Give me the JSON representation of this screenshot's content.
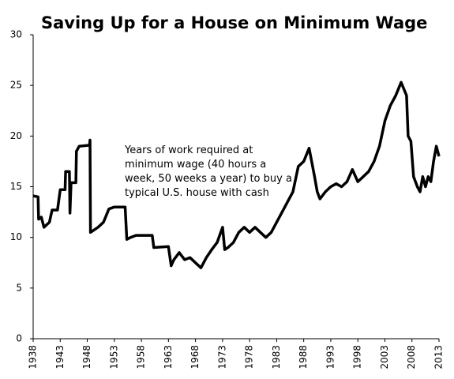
{
  "chart_data": {
    "type": "line",
    "title": "Saving Up for a House on Minimum Wage",
    "annotation": [
      "Years of work required at",
      "minimum wage (40 hours a",
      "week, 50 weeks a year) to buy a",
      "typical U.S. house with cash"
    ],
    "color": "#000000",
    "x": [
      1938,
      1938.9,
      1939,
      1939.5,
      1940,
      1941,
      1941.5,
      1942.5,
      1943,
      1943.9,
      1944,
      1944.7,
      1944.8,
      1945,
      1945.9,
      1946,
      1946.5,
      1948.4,
      1948.5,
      1948.6,
      1950,
      1951,
      1952,
      1953,
      1955,
      1955.3,
      1956,
      1957,
      1960,
      1960.3,
      1963,
      1963.5,
      1964,
      1965,
      1966,
      1967,
      1968,
      1969,
      1970,
      1971,
      1972,
      1973,
      1973.4,
      1974,
      1975,
      1976,
      1977,
      1978,
      1979,
      1980,
      1981,
      1982,
      1983,
      1984,
      1985,
      1986,
      1987,
      1988,
      1989,
      1990,
      1990.5,
      1991,
      1992,
      1993,
      1994,
      1995,
      1996,
      1997,
      1998,
      1999,
      2000,
      2001,
      2002,
      2003,
      2004,
      2005,
      2006,
      2007,
      2007.3,
      2007.8,
      2008.3,
      2009,
      2009.5,
      2010,
      2010.5,
      2011,
      2011.5,
      2012,
      2012.5,
      2013
    ],
    "values": [
      14.1,
      14,
      11.8,
      12,
      11,
      11.5,
      12.7,
      12.7,
      14.7,
      14.7,
      16.5,
      16.5,
      12.4,
      15.4,
      15.4,
      18.5,
      19,
      19.1,
      19.6,
      10.5,
      11,
      11.5,
      12.8,
      13,
      13,
      9.8,
      10,
      10.2,
      10.2,
      9,
      9.1,
      7.2,
      7.8,
      8.5,
      7.8,
      8,
      7.5,
      7,
      8,
      8.8,
      9.5,
      11,
      8.8,
      9,
      9.5,
      10.5,
      11,
      10.5,
      11,
      10.5,
      10,
      10.5,
      11.5,
      12.5,
      13.5,
      14.5,
      17,
      17.5,
      18.8,
      16,
      14.5,
      13.8,
      14.5,
      15,
      15.3,
      15,
      15.5,
      16.7,
      15.5,
      16,
      16.5,
      17.5,
      19,
      21.5,
      23,
      24,
      25.3,
      24,
      20,
      19.5,
      16,
      15,
      14.5,
      16,
      15,
      16,
      15.5,
      17.5,
      19,
      18
    ],
    "xlim": [
      1938,
      2013
    ],
    "xticks": [
      1938,
      1943,
      1948,
      1953,
      1958,
      1963,
      1968,
      1973,
      1978,
      1983,
      1988,
      1993,
      1998,
      2003,
      2008,
      2013
    ],
    "ylim": [
      0,
      30
    ],
    "yticks": [
      0,
      5,
      10,
      15,
      20,
      25,
      30
    ]
  }
}
